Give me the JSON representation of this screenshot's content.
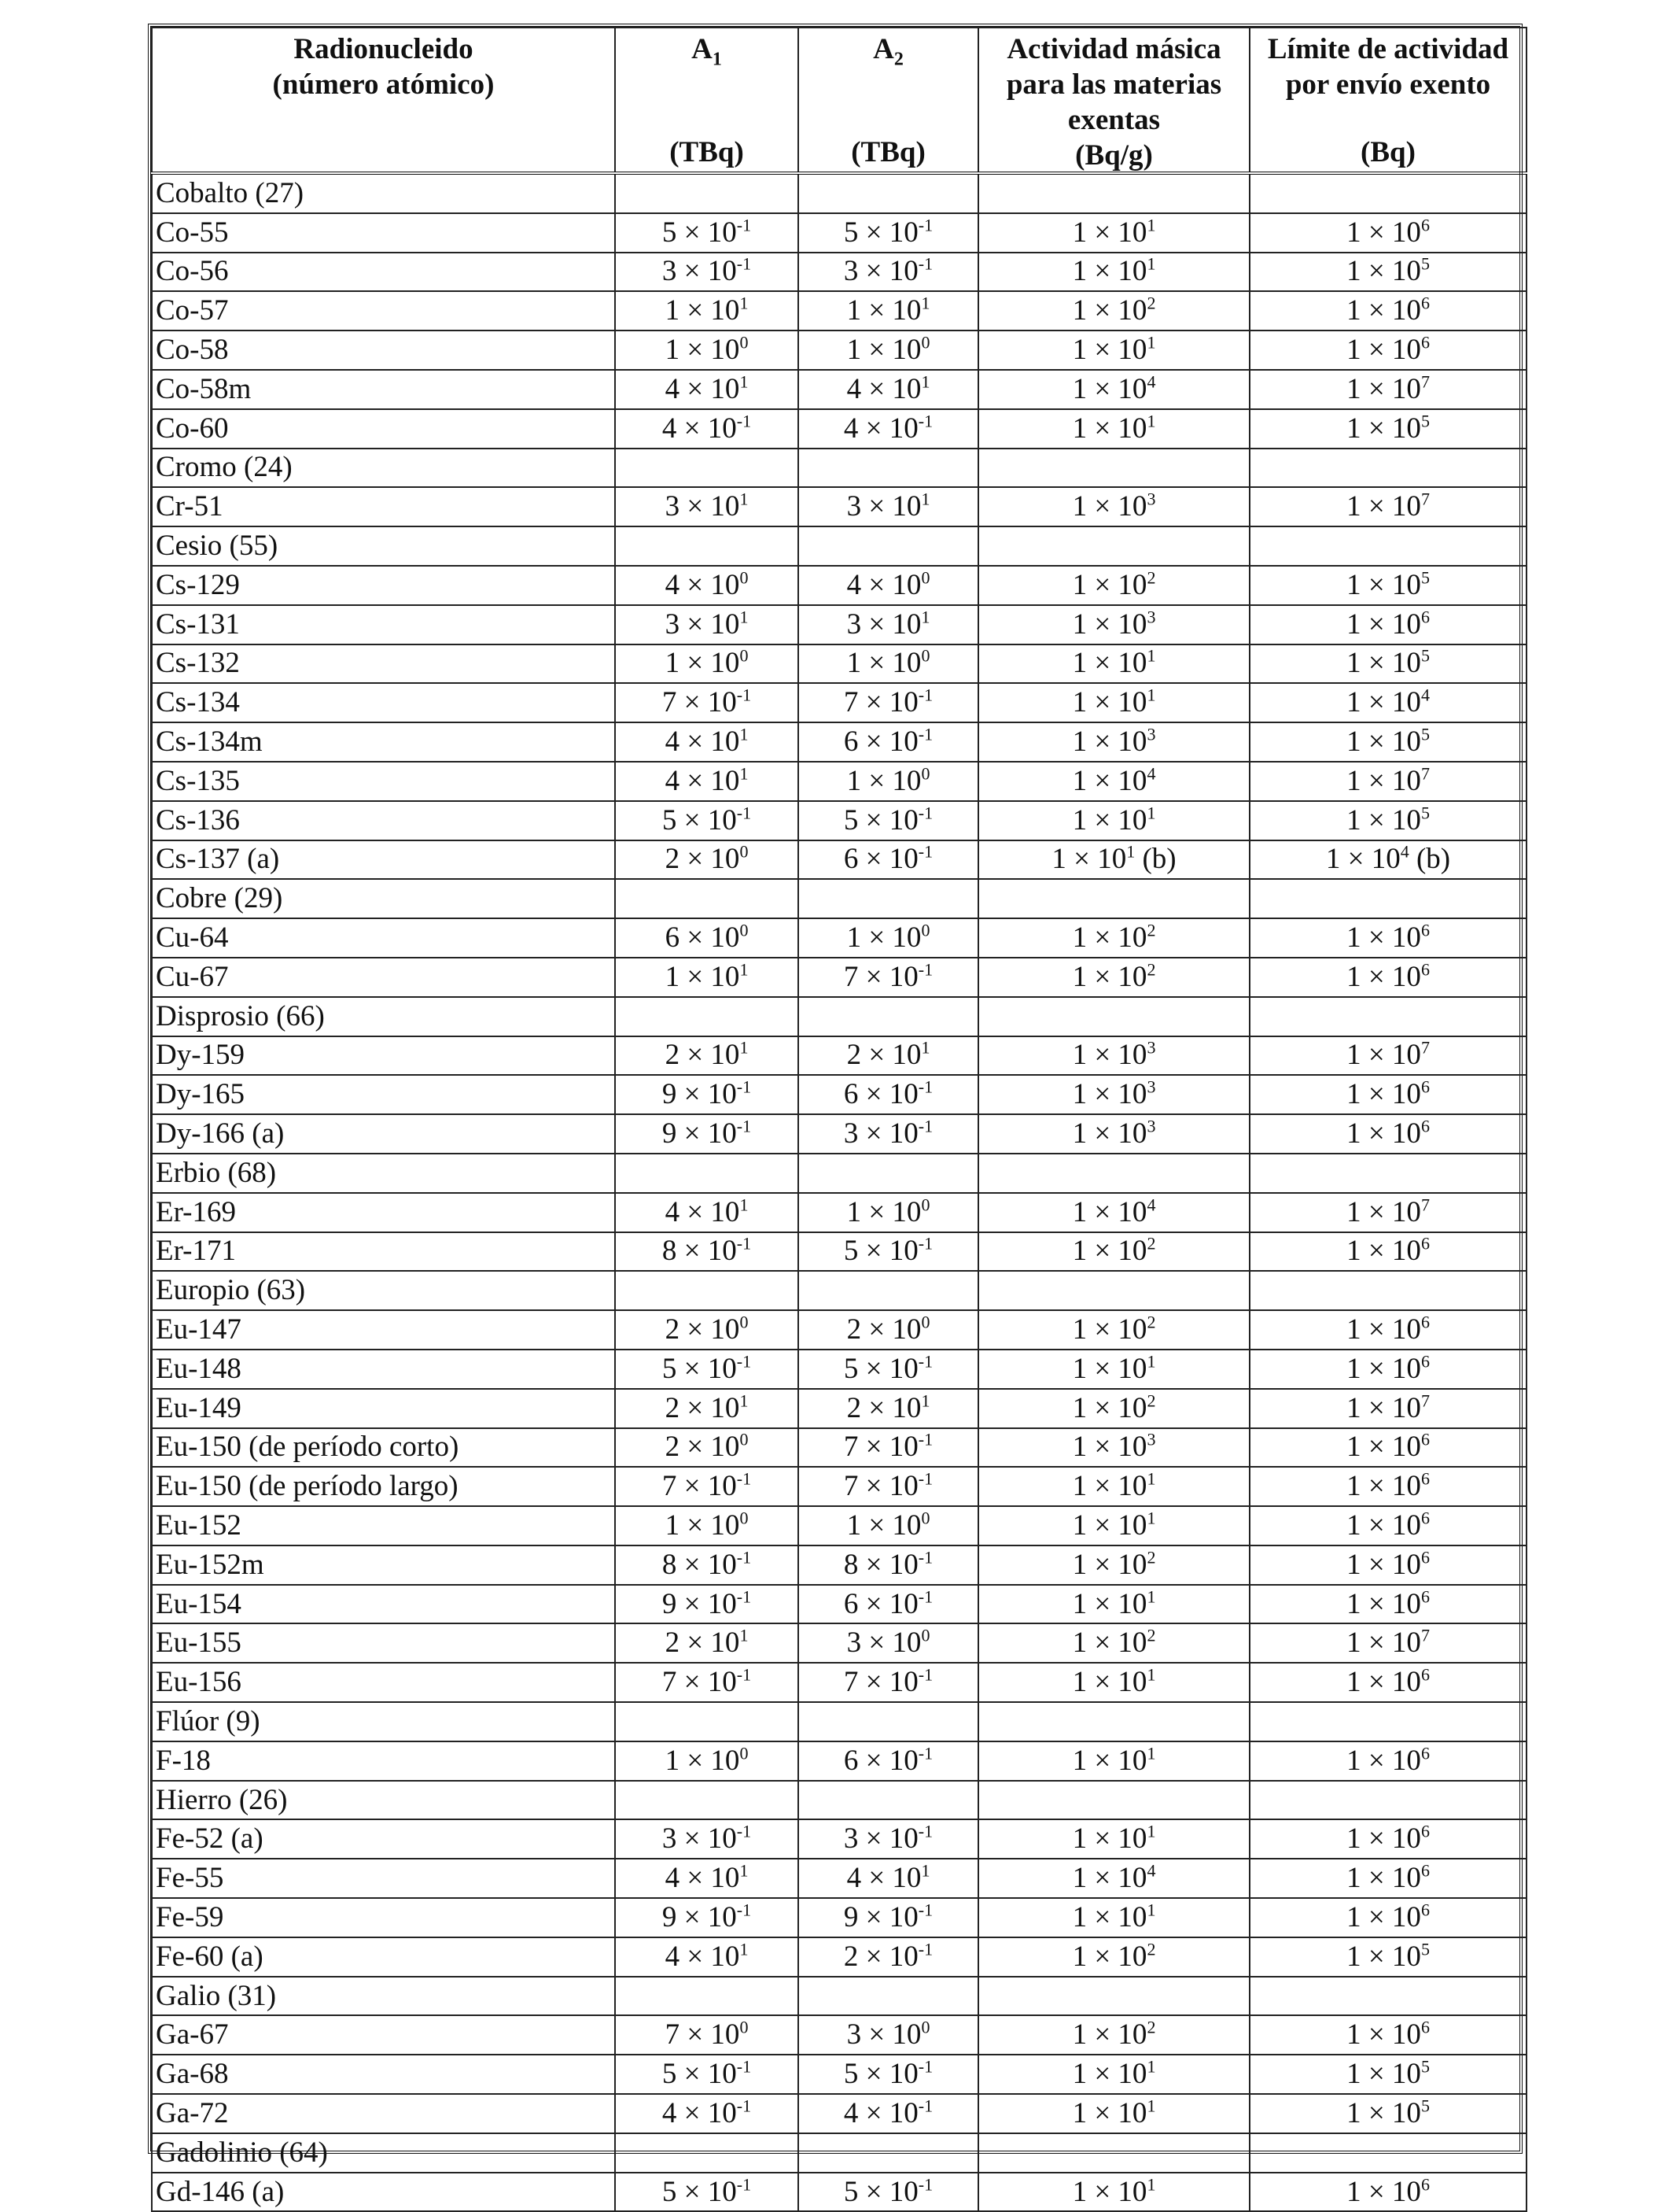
{
  "headers": {
    "col1": {
      "title": "Radionucleido",
      "subtitle": "(número atómico)",
      "unit": ""
    },
    "col2": {
      "title": "A",
      "sub": "1",
      "unit": "(TBq)"
    },
    "col3": {
      "title": "A",
      "sub": "2",
      "unit": "(TBq)"
    },
    "col4": {
      "title": "Actividad másica para las materias exentas",
      "unit": "(Bq/g)"
    },
    "col5": {
      "title": "Límite de actividad por envío exento",
      "unit": "(Bq)"
    }
  },
  "rows": [
    {
      "type": "group",
      "name": "Cobalto (27)"
    },
    {
      "type": "item",
      "name": "Co-55",
      "a1": [
        "5",
        "-1"
      ],
      "a2": [
        "5",
        "-1"
      ],
      "mass": [
        "1",
        "1"
      ],
      "limit": [
        "1",
        "6"
      ]
    },
    {
      "type": "item",
      "name": "Co-56",
      "a1": [
        "3",
        "-1"
      ],
      "a2": [
        "3",
        "-1"
      ],
      "mass": [
        "1",
        "1"
      ],
      "limit": [
        "1",
        "5"
      ]
    },
    {
      "type": "item",
      "name": "Co-57",
      "a1": [
        "1",
        "1"
      ],
      "a2": [
        "1",
        "1"
      ],
      "mass": [
        "1",
        "2"
      ],
      "limit": [
        "1",
        "6"
      ]
    },
    {
      "type": "item",
      "name": "Co-58",
      "a1": [
        "1",
        "0"
      ],
      "a2": [
        "1",
        "0"
      ],
      "mass": [
        "1",
        "1"
      ],
      "limit": [
        "1",
        "6"
      ]
    },
    {
      "type": "item",
      "name": "Co-58m",
      "a1": [
        "4",
        "1"
      ],
      "a2": [
        "4",
        "1"
      ],
      "mass": [
        "1",
        "4"
      ],
      "limit": [
        "1",
        "7"
      ]
    },
    {
      "type": "item",
      "name": "Co-60",
      "a1": [
        "4",
        "-1"
      ],
      "a2": [
        "4",
        "-1"
      ],
      "mass": [
        "1",
        "1"
      ],
      "limit": [
        "1",
        "5"
      ]
    },
    {
      "type": "group",
      "name": "Cromo (24)"
    },
    {
      "type": "item",
      "name": "Cr-51",
      "a1": [
        "3",
        "1"
      ],
      "a2": [
        "3",
        "1"
      ],
      "mass": [
        "1",
        "3"
      ],
      "limit": [
        "1",
        "7"
      ]
    },
    {
      "type": "group",
      "name": "Cesio (55)"
    },
    {
      "type": "item",
      "name": "Cs-129",
      "a1": [
        "4",
        "0"
      ],
      "a2": [
        "4",
        "0"
      ],
      "mass": [
        "1",
        "2"
      ],
      "limit": [
        "1",
        "5"
      ]
    },
    {
      "type": "item",
      "name": "Cs-131",
      "a1": [
        "3",
        "1"
      ],
      "a2": [
        "3",
        "1"
      ],
      "mass": [
        "1",
        "3"
      ],
      "limit": [
        "1",
        "6"
      ]
    },
    {
      "type": "item",
      "name": "Cs-132",
      "a1": [
        "1",
        "0"
      ],
      "a2": [
        "1",
        "0"
      ],
      "mass": [
        "1",
        "1"
      ],
      "limit": [
        "1",
        "5"
      ]
    },
    {
      "type": "item",
      "name": "Cs-134",
      "a1": [
        "7",
        "-1"
      ],
      "a2": [
        "7",
        "-1"
      ],
      "mass": [
        "1",
        "1"
      ],
      "limit": [
        "1",
        "4"
      ]
    },
    {
      "type": "item",
      "name": "Cs-134m",
      "a1": [
        "4",
        "1"
      ],
      "a2": [
        "6",
        "-1"
      ],
      "mass": [
        "1",
        "3"
      ],
      "limit": [
        "1",
        "5"
      ]
    },
    {
      "type": "item",
      "name": "Cs-135",
      "a1": [
        "4",
        "1"
      ],
      "a2": [
        "1",
        "0"
      ],
      "mass": [
        "1",
        "4"
      ],
      "limit": [
        "1",
        "7"
      ]
    },
    {
      "type": "item",
      "name": "Cs-136",
      "a1": [
        "5",
        "-1"
      ],
      "a2": [
        "5",
        "-1"
      ],
      "mass": [
        "1",
        "1"
      ],
      "limit": [
        "1",
        "5"
      ]
    },
    {
      "type": "item",
      "name": "Cs-137 (a)",
      "a1": [
        "2",
        "0"
      ],
      "a2": [
        "6",
        "-1"
      ],
      "mass": [
        "1",
        "1",
        " (b)"
      ],
      "limit": [
        "1",
        "4",
        " (b)"
      ]
    },
    {
      "type": "group",
      "name": "Cobre (29)"
    },
    {
      "type": "item",
      "name": "Cu-64",
      "a1": [
        "6",
        "0"
      ],
      "a2": [
        "1",
        "0"
      ],
      "mass": [
        "1",
        "2"
      ],
      "limit": [
        "1",
        "6"
      ]
    },
    {
      "type": "item",
      "name": "Cu-67",
      "a1": [
        "1",
        "1"
      ],
      "a2": [
        "7",
        "-1"
      ],
      "mass": [
        "1",
        "2"
      ],
      "limit": [
        "1",
        "6"
      ]
    },
    {
      "type": "group",
      "name": "Disprosio (66)"
    },
    {
      "type": "item",
      "name": "Dy-159",
      "a1": [
        "2",
        "1"
      ],
      "a2": [
        "2",
        "1"
      ],
      "mass": [
        "1",
        "3"
      ],
      "limit": [
        "1",
        "7"
      ]
    },
    {
      "type": "item",
      "name": "Dy-165",
      "a1": [
        "9",
        "-1"
      ],
      "a2": [
        "6",
        "-1"
      ],
      "mass": [
        "1",
        "3"
      ],
      "limit": [
        "1",
        "6"
      ]
    },
    {
      "type": "item",
      "name": "Dy-166 (a)",
      "a1": [
        "9",
        "-1"
      ],
      "a2": [
        "3",
        "-1"
      ],
      "mass": [
        "1",
        "3"
      ],
      "limit": [
        "1",
        "6"
      ]
    },
    {
      "type": "group",
      "name": "Erbio (68)"
    },
    {
      "type": "item",
      "name": "Er-169",
      "a1": [
        "4",
        "1"
      ],
      "a2": [
        "1",
        "0"
      ],
      "mass": [
        "1",
        "4"
      ],
      "limit": [
        "1",
        "7"
      ]
    },
    {
      "type": "item",
      "name": "Er-171",
      "a1": [
        "8",
        "-1"
      ],
      "a2": [
        "5",
        "-1"
      ],
      "mass": [
        "1",
        "2"
      ],
      "limit": [
        "1",
        "6"
      ]
    },
    {
      "type": "group",
      "name": "Europio (63)"
    },
    {
      "type": "item",
      "name": "Eu-147",
      "a1": [
        "2",
        "0"
      ],
      "a2": [
        "2",
        "0"
      ],
      "mass": [
        "1",
        "2"
      ],
      "limit": [
        "1",
        "6"
      ]
    },
    {
      "type": "item",
      "name": "Eu-148",
      "a1": [
        "5",
        "-1"
      ],
      "a2": [
        "5",
        "-1"
      ],
      "mass": [
        "1",
        "1"
      ],
      "limit": [
        "1",
        "6"
      ]
    },
    {
      "type": "item",
      "name": "Eu-149",
      "a1": [
        "2",
        "1"
      ],
      "a2": [
        "2",
        "1"
      ],
      "mass": [
        "1",
        "2"
      ],
      "limit": [
        "1",
        "7"
      ]
    },
    {
      "type": "item",
      "name": "Eu-150 (de período corto)",
      "a1": [
        "2",
        "0"
      ],
      "a2": [
        "7",
        "-1"
      ],
      "mass": [
        "1",
        "3"
      ],
      "limit": [
        "1",
        "6"
      ]
    },
    {
      "type": "item",
      "name": "Eu-150 (de período largo)",
      "a1": [
        "7",
        "-1"
      ],
      "a2": [
        "7",
        "-1"
      ],
      "mass": [
        "1",
        "1"
      ],
      "limit": [
        "1",
        "6"
      ]
    },
    {
      "type": "item",
      "name": "Eu-152",
      "a1": [
        "1",
        "0"
      ],
      "a2": [
        "1",
        "0"
      ],
      "mass": [
        "1",
        "1"
      ],
      "limit": [
        "1",
        "6"
      ]
    },
    {
      "type": "item",
      "name": "Eu-152m",
      "a1": [
        "8",
        "-1"
      ],
      "a2": [
        "8",
        "-1"
      ],
      "mass": [
        "1",
        "2"
      ],
      "limit": [
        "1",
        "6"
      ]
    },
    {
      "type": "item",
      "name": "Eu-154",
      "a1": [
        "9",
        "-1"
      ],
      "a2": [
        "6",
        "-1"
      ],
      "mass": [
        "1",
        "1"
      ],
      "limit": [
        "1",
        "6"
      ]
    },
    {
      "type": "item",
      "name": "Eu-155",
      "a1": [
        "2",
        "1"
      ],
      "a2": [
        "3",
        "0"
      ],
      "mass": [
        "1",
        "2"
      ],
      "limit": [
        "1",
        "7"
      ]
    },
    {
      "type": "item",
      "name": "Eu-156",
      "a1": [
        "7",
        "-1"
      ],
      "a2": [
        "7",
        "-1"
      ],
      "mass": [
        "1",
        "1"
      ],
      "limit": [
        "1",
        "6"
      ]
    },
    {
      "type": "group",
      "name": "Flúor (9)"
    },
    {
      "type": "item",
      "name": "F-18",
      "a1": [
        "1",
        "0"
      ],
      "a2": [
        "6",
        "-1"
      ],
      "mass": [
        "1",
        "1"
      ],
      "limit": [
        "1",
        "6"
      ]
    },
    {
      "type": "group",
      "name": "Hierro (26)"
    },
    {
      "type": "item",
      "name": "Fe-52 (a)",
      "a1": [
        "3",
        "-1"
      ],
      "a2": [
        "3",
        "-1"
      ],
      "mass": [
        "1",
        "1"
      ],
      "limit": [
        "1",
        "6"
      ]
    },
    {
      "type": "item",
      "name": "Fe-55",
      "a1": [
        "4",
        "1"
      ],
      "a2": [
        "4",
        "1"
      ],
      "mass": [
        "1",
        "4"
      ],
      "limit": [
        "1",
        "6"
      ]
    },
    {
      "type": "item",
      "name": "Fe-59",
      "a1": [
        "9",
        "-1"
      ],
      "a2": [
        "9",
        "-1"
      ],
      "mass": [
        "1",
        "1"
      ],
      "limit": [
        "1",
        "6"
      ]
    },
    {
      "type": "item",
      "name": "Fe-60 (a)",
      "a1": [
        "4",
        "1"
      ],
      "a2": [
        "2",
        "-1"
      ],
      "mass": [
        "1",
        "2"
      ],
      "limit": [
        "1",
        "5"
      ]
    },
    {
      "type": "group",
      "name": "Galio (31)"
    },
    {
      "type": "item",
      "name": "Ga-67",
      "a1": [
        "7",
        "0"
      ],
      "a2": [
        "3",
        "0"
      ],
      "mass": [
        "1",
        "2"
      ],
      "limit": [
        "1",
        "6"
      ]
    },
    {
      "type": "item",
      "name": "Ga-68",
      "a1": [
        "5",
        "-1"
      ],
      "a2": [
        "5",
        "-1"
      ],
      "mass": [
        "1",
        "1"
      ],
      "limit": [
        "1",
        "5"
      ]
    },
    {
      "type": "item",
      "name": "Ga-72",
      "a1": [
        "4",
        "-1"
      ],
      "a2": [
        "4",
        "-1"
      ],
      "mass": [
        "1",
        "1"
      ],
      "limit": [
        "1",
        "5"
      ]
    },
    {
      "type": "group",
      "name": "Gadolinio (64)"
    },
    {
      "type": "item",
      "name": "Gd-146 (a)",
      "a1": [
        "5",
        "-1"
      ],
      "a2": [
        "5",
        "-1"
      ],
      "mass": [
        "1",
        "1"
      ],
      "limit": [
        "1",
        "6"
      ]
    }
  ]
}
